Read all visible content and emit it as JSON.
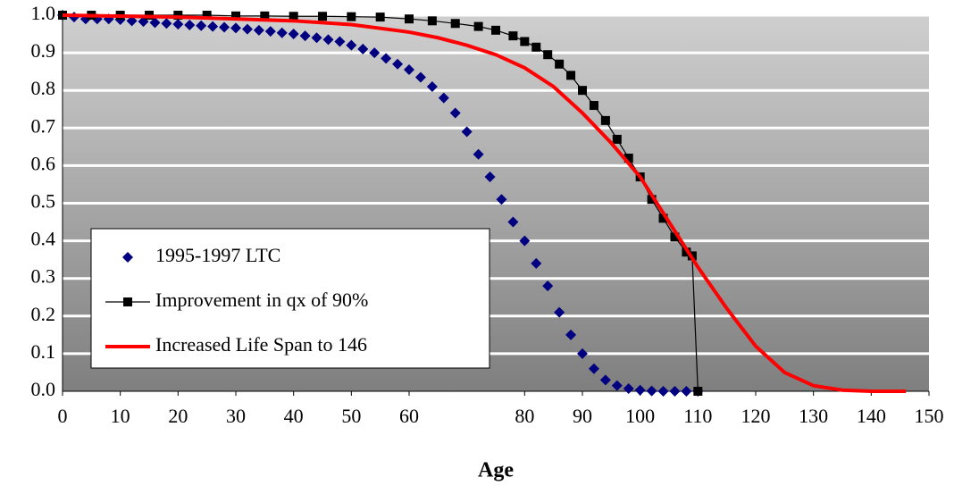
{
  "chart_data": {
    "type": "line",
    "xlabel": "Age",
    "xlim": [
      0,
      150
    ],
    "xticks": [
      0,
      10,
      20,
      30,
      40,
      50,
      60,
      80,
      90,
      100,
      110,
      120,
      130,
      140,
      150
    ],
    "ylim": [
      0,
      1
    ],
    "yticks": [
      {
        "value": 0,
        "label": "0.0"
      },
      0.1,
      0.2,
      0.3,
      0.4,
      0.5,
      0.6,
      0.7,
      0.8,
      0.9,
      {
        "value": 1,
        "label": "1.0"
      }
    ],
    "grid": true,
    "legend": "lower left",
    "series": [
      {
        "name": "1995-1997 LTC",
        "color": "#000080",
        "marker": "diamond",
        "line": false,
        "x": [
          0,
          2,
          4,
          6,
          8,
          10,
          12,
          14,
          16,
          18,
          20,
          22,
          24,
          26,
          28,
          30,
          32,
          34,
          36,
          38,
          40,
          42,
          44,
          46,
          48,
          50,
          52,
          54,
          56,
          58,
          60,
          62,
          64,
          66,
          68,
          70,
          72,
          74,
          76,
          78,
          80,
          82,
          84,
          86,
          88,
          90,
          92,
          94,
          96,
          98,
          100,
          102,
          104,
          106,
          108,
          110
        ],
        "values": [
          1.0,
          0.995,
          0.99,
          0.99,
          0.99,
          0.988,
          0.985,
          0.983,
          0.98,
          0.978,
          0.976,
          0.974,
          0.972,
          0.97,
          0.968,
          0.966,
          0.963,
          0.96,
          0.957,
          0.953,
          0.95,
          0.945,
          0.94,
          0.935,
          0.93,
          0.92,
          0.91,
          0.9,
          0.885,
          0.87,
          0.855,
          0.835,
          0.81,
          0.78,
          0.74,
          0.69,
          0.63,
          0.57,
          0.51,
          0.45,
          0.4,
          0.34,
          0.28,
          0.21,
          0.15,
          0.1,
          0.06,
          0.03,
          0.015,
          0.007,
          0.003,
          0.001,
          0,
          0,
          0,
          0
        ]
      },
      {
        "name": "Improvement in qx of 90%",
        "color": "#000000",
        "marker": "square",
        "line": true,
        "x": [
          0,
          5,
          10,
          15,
          20,
          25,
          30,
          35,
          40,
          45,
          50,
          55,
          60,
          64,
          68,
          72,
          75,
          78,
          80,
          82,
          84,
          86,
          88,
          90,
          92,
          94,
          96,
          98,
          100,
          102,
          104,
          106,
          108,
          109,
          110
        ],
        "values": [
          1,
          1,
          1,
          1,
          1,
          1,
          0.998,
          0.998,
          0.997,
          0.997,
          0.996,
          0.995,
          0.99,
          0.985,
          0.978,
          0.97,
          0.96,
          0.945,
          0.93,
          0.915,
          0.895,
          0.87,
          0.84,
          0.8,
          0.76,
          0.72,
          0.67,
          0.62,
          0.57,
          0.51,
          0.46,
          0.41,
          0.37,
          0.36,
          0
        ]
      },
      {
        "name": "Increased Life Span to 146",
        "color": "#ff0000",
        "marker": "none",
        "line": true,
        "x": [
          0,
          20,
          40,
          50,
          60,
          65,
          70,
          75,
          80,
          85,
          90,
          95,
          100,
          105,
          110,
          115,
          120,
          125,
          130,
          135,
          140,
          146
        ],
        "values": [
          1,
          0.995,
          0.985,
          0.975,
          0.955,
          0.94,
          0.92,
          0.895,
          0.86,
          0.81,
          0.74,
          0.66,
          0.57,
          0.45,
          0.33,
          0.22,
          0.12,
          0.05,
          0.015,
          0.003,
          0,
          0
        ]
      }
    ]
  }
}
